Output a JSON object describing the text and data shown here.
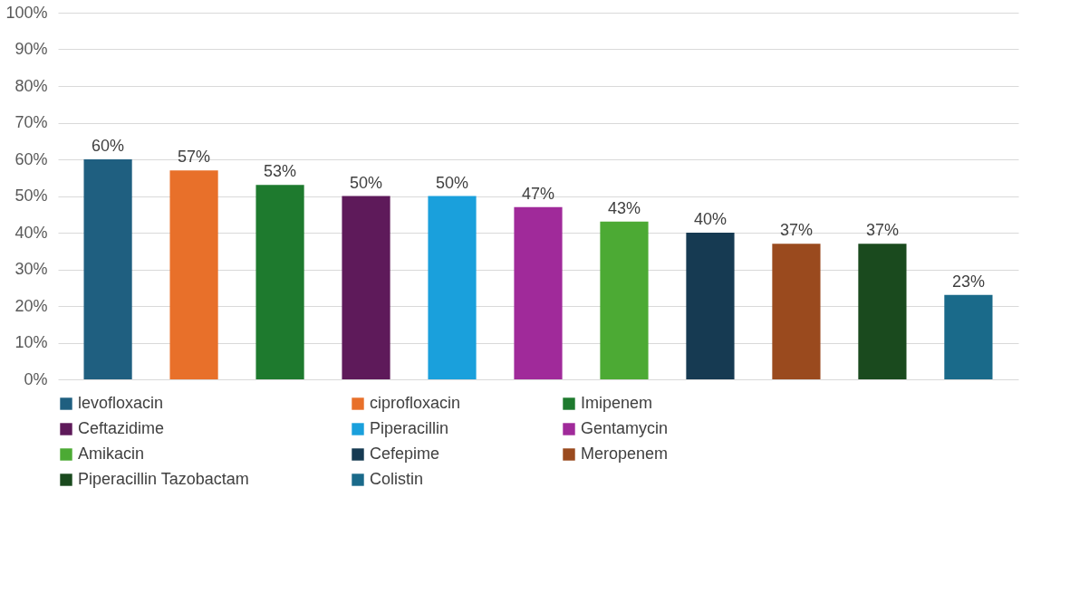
{
  "chart_data": {
    "type": "bar",
    "categories": [
      null,
      null,
      null,
      null,
      null,
      null,
      null,
      null,
      null,
      null,
      null
    ],
    "series": [
      {
        "name": "levofloxacin",
        "color": "#1f5f80",
        "values": [
          60,
          null,
          null,
          null,
          null,
          null,
          null,
          null,
          null,
          null,
          null
        ],
        "value_labels": [
          "60%",
          null,
          null,
          null,
          null,
          null,
          null,
          null,
          null,
          null,
          null
        ]
      },
      {
        "name": "ciprofloxacin",
        "color": "#e8702a",
        "values": [
          null,
          57,
          null,
          null,
          null,
          null,
          null,
          null,
          null,
          null,
          null
        ],
        "value_labels": [
          null,
          "57%",
          null,
          null,
          null,
          null,
          null,
          null,
          null,
          null,
          null
        ]
      },
      {
        "name": "Imipenem",
        "color": "#1e7a2e",
        "values": [
          null,
          null,
          53,
          null,
          null,
          null,
          null,
          null,
          null,
          null,
          null
        ],
        "value_labels": [
          null,
          null,
          "53%",
          null,
          null,
          null,
          null,
          null,
          null,
          null,
          null
        ]
      },
      {
        "name": "Ceftazidime",
        "color": "#5e1a5a",
        "values": [
          null,
          null,
          null,
          50,
          null,
          null,
          null,
          null,
          null,
          null,
          null
        ],
        "value_labels": [
          null,
          null,
          null,
          "50%",
          null,
          null,
          null,
          null,
          null,
          null,
          null
        ]
      },
      {
        "name": "Piperacillin",
        "color": "#1aa0dc",
        "values": [
          null,
          null,
          null,
          null,
          50,
          null,
          null,
          null,
          null,
          null,
          null
        ],
        "value_labels": [
          null,
          null,
          null,
          null,
          "50%",
          null,
          null,
          null,
          null,
          null,
          null
        ]
      },
      {
        "name": "Gentamycin",
        "color": "#a02a9a",
        "values": [
          null,
          null,
          null,
          null,
          null,
          47,
          null,
          null,
          null,
          null,
          null
        ],
        "value_labels": [
          null,
          null,
          null,
          null,
          null,
          "47%",
          null,
          null,
          null,
          null,
          null
        ]
      },
      {
        "name": "Amikacin",
        "color": "#4caa34",
        "values": [
          null,
          null,
          null,
          null,
          null,
          null,
          43,
          null,
          null,
          null,
          null
        ],
        "value_labels": [
          null,
          null,
          null,
          null,
          null,
          null,
          "43%",
          null,
          null,
          null,
          null
        ]
      },
      {
        "name": "Cefepime",
        "color": "#163a52",
        "values": [
          null,
          null,
          null,
          null,
          null,
          null,
          null,
          40,
          null,
          null,
          null
        ],
        "value_labels": [
          null,
          null,
          null,
          null,
          null,
          null,
          null,
          "40%",
          null,
          null,
          null
        ]
      },
      {
        "name": "Meropenem",
        "color": "#9a4a1e",
        "values": [
          null,
          null,
          null,
          null,
          null,
          null,
          null,
          null,
          37,
          null,
          null
        ],
        "value_labels": [
          null,
          null,
          null,
          null,
          null,
          null,
          null,
          null,
          "37%",
          null,
          null
        ]
      },
      {
        "name": "Piperacillin Tazobactam",
        "color": "#1a4a1e",
        "values": [
          null,
          null,
          null,
          null,
          null,
          null,
          null,
          null,
          null,
          37,
          null
        ],
        "value_labels": [
          null,
          null,
          null,
          null,
          null,
          null,
          null,
          null,
          null,
          "37%",
          null
        ]
      },
      {
        "name": "Colistin",
        "color": "#1a6a8a",
        "values": [
          null,
          null,
          null,
          null,
          null,
          null,
          null,
          null,
          null,
          null,
          23
        ],
        "value_labels": [
          null,
          null,
          null,
          null,
          null,
          null,
          null,
          null,
          null,
          null,
          "23%"
        ]
      }
    ],
    "ylim": [
      0,
      100
    ],
    "yticks": [
      {
        "value": 0,
        "label": "0%"
      },
      {
        "value": 10,
        "label": "10%"
      },
      {
        "value": 20,
        "label": "20%"
      },
      {
        "value": 30,
        "label": "30%"
      },
      {
        "value": 40,
        "label": "40%"
      },
      {
        "value": 50,
        "label": "50%"
      },
      {
        "value": 60,
        "label": "60%"
      },
      {
        "value": 70,
        "label": "70%"
      },
      {
        "value": 80,
        "label": "80%"
      },
      {
        "value": 90,
        "label": "90%"
      },
      {
        "value": 100,
        "label": "100%"
      }
    ],
    "grid": "y",
    "legend": "bottom",
    "tick_labels": "y"
  }
}
